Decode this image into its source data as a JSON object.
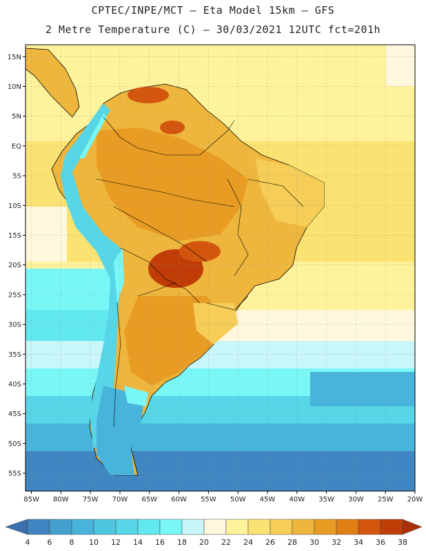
{
  "header": {
    "line1": "CPTEC/INPE/MCT –  Eta Model 15km – GFS",
    "line2": "2 Metre Temperature (C) – 30/03/2021 12UTC fct=201h"
  },
  "map": {
    "lon_range": [
      -86,
      -20
    ],
    "lat_range": [
      -58,
      17
    ],
    "lat_ticks": [
      "15N",
      "10N",
      "5N",
      "EQ",
      "5S",
      "10S",
      "15S",
      "20S",
      "25S",
      "30S",
      "35S",
      "40S",
      "45S",
      "50S",
      "55S"
    ],
    "lon_ticks": [
      "85W",
      "80W",
      "75W",
      "70W",
      "65W",
      "60W",
      "55W",
      "50W",
      "45W",
      "40W",
      "35W",
      "30W",
      "25W",
      "20W"
    ]
  },
  "colorbar": {
    "labels": [
      "4",
      "6",
      "8",
      "10",
      "12",
      "14",
      "16",
      "18",
      "20",
      "22",
      "24",
      "26",
      "28",
      "30",
      "32",
      "34",
      "36",
      "38"
    ],
    "colors": [
      "#3a6fb0",
      "#3f86c2",
      "#44a0cf",
      "#48b4db",
      "#4ec6e0",
      "#56d6e6",
      "#62e8ef",
      "#79f7f7",
      "#c8f6f9",
      "#fff8dc",
      "#fef39a",
      "#fbe373",
      "#f5cd57",
      "#eeb63d",
      "#e89c24",
      "#e07e14",
      "#d3560e",
      "#c03d08",
      "#a83006"
    ]
  }
}
